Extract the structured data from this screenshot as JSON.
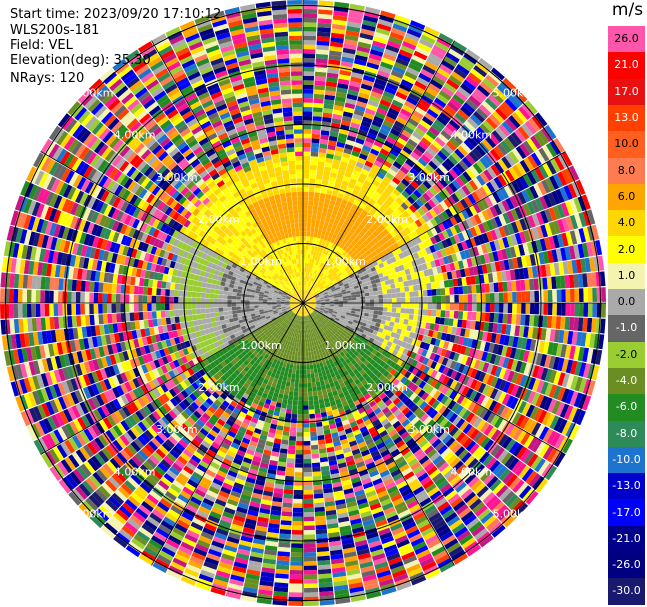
{
  "header": {
    "start_time": "Start time: 2023/09/20 17:10:12",
    "instrument": "WLS200s-181",
    "field": "Field: VEL",
    "elevation": "Elevation(deg): 35.30",
    "nrays": "NRays: 120"
  },
  "colorbar": {
    "unit": "m/s",
    "ticks": [
      "26.0",
      "21.0",
      "17.0",
      "13.0",
      "10.0",
      "8.0",
      "6.0",
      "4.0",
      "2.0",
      "1.0",
      "0.0",
      "-1.0",
      "-2.0",
      "-4.0",
      "-6.0",
      "-8.0",
      "-10.0",
      "-13.0",
      "-17.0",
      "-21.0",
      "-26.0",
      "-30.0"
    ],
    "colors": [
      "#ff55aa",
      "#ff0000",
      "#e81010",
      "#ff4000",
      "#ff6020",
      "#ff7b50",
      "#ffa500",
      "#ffd700",
      "#ffff00",
      "#f4f4b0",
      "#aaaaaa",
      "#666666",
      "#9acd32",
      "#6b8e23",
      "#228b22",
      "#2e8b57",
      "#1e73cf",
      "#0000cd",
      "#0000ff",
      "#00008b",
      "#000080",
      "#191970"
    ]
  },
  "range_rings": {
    "unit_suffix": "km",
    "labels": [
      "1.00km",
      "2.00km",
      "3.00km",
      "4.00km",
      "5.00km"
    ]
  },
  "chart_data": {
    "type": "ppi-radar",
    "field": "VEL",
    "nrays": 120,
    "range_rings_km": [
      1,
      2,
      3,
      4,
      5
    ],
    "near_field": {
      "north_sector_m_s": [
        2.0,
        6.0
      ],
      "south_sector_m_s": [
        -6.0,
        -2.0
      ],
      "east_west_m_s": [
        -1.0,
        1.0
      ]
    }
  }
}
